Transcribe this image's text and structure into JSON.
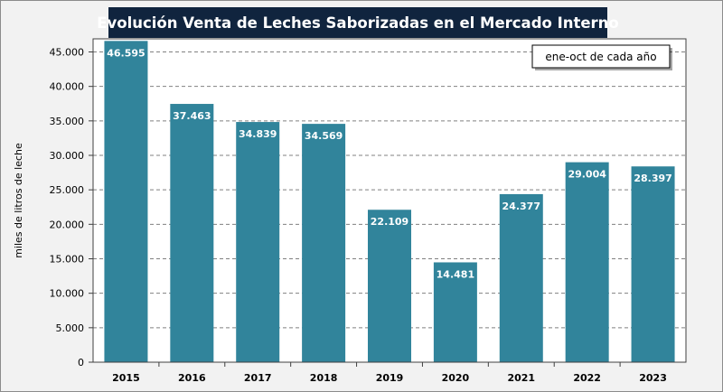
{
  "chart_data": {
    "type": "bar",
    "title": "Evolución Venta de Leches Saborizadas en el Mercado Interno",
    "annotation": "ene-oct de cada año",
    "xlabel": "",
    "ylabel": "miles de litros de leche",
    "categories": [
      "2015",
      "2016",
      "2017",
      "2018",
      "2019",
      "2020",
      "2021",
      "2022",
      "2023"
    ],
    "values": [
      46595,
      37463,
      34839,
      34569,
      22109,
      14481,
      24377,
      29004,
      28397
    ],
    "value_labels": [
      "46.595",
      "37.463",
      "34.839",
      "34.569",
      "22.109",
      "14.481",
      "24.377",
      "29.004",
      "28.397"
    ],
    "ylim": [
      0,
      46900
    ],
    "yticks": [
      0,
      5000,
      10000,
      15000,
      20000,
      25000,
      30000,
      35000,
      40000,
      45000
    ],
    "ytick_labels": [
      "0",
      "5.000",
      "10.000",
      "15.000",
      "20.000",
      "25.000",
      "30.000",
      "35.000",
      "40.000",
      "45.000"
    ],
    "grid": "horizontal dashed",
    "legend": "none",
    "colors": {
      "bar": "#31849b",
      "title_bg": "#10243e"
    }
  }
}
